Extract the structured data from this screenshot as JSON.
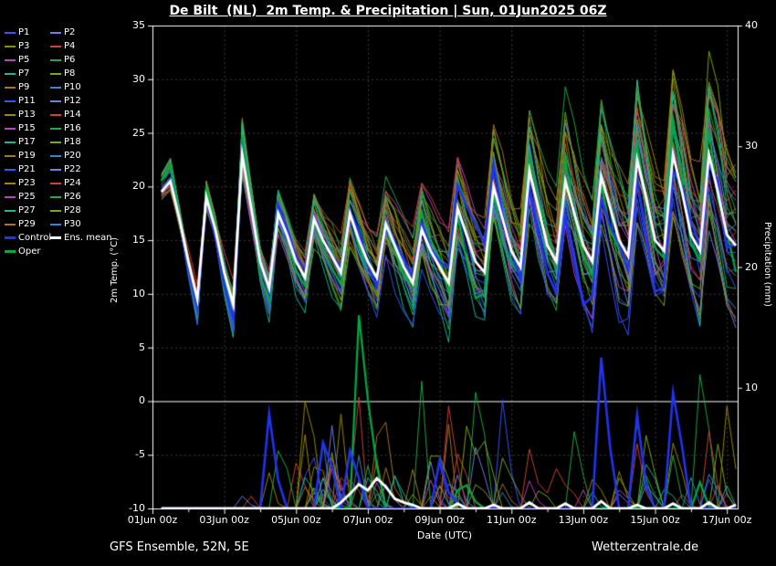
{
  "title": "De Bilt  (NL)  2m Temp. & Precipitation | Sun, 01Jun2025 06Z",
  "footer": {
    "left": "GFS Ensemble, 52N, 5E",
    "right": "Wetterzentrale.de"
  },
  "axes": {
    "left_label": "2m Temp. (°C)",
    "right_label": "Precipitation (mm)",
    "x_label": "Date (UTC)",
    "temp_ticks": [
      35,
      30,
      25,
      20,
      15,
      10,
      5,
      0,
      -5,
      -10
    ],
    "precip_ticks": [
      40,
      30,
      20,
      10
    ],
    "x_ticks": [
      {
        "day": 0,
        "label": "01Jun 00z"
      },
      {
        "day": 2,
        "label": "03Jun 00z"
      },
      {
        "day": 4,
        "label": "05Jun 00z"
      },
      {
        "day": 6,
        "label": "07Jun 00z"
      },
      {
        "day": 8,
        "label": "09Jun 00z"
      },
      {
        "day": 10,
        "label": "11Jun 00z"
      },
      {
        "day": 12,
        "label": "13Jun 00z"
      },
      {
        "day": 14,
        "label": "15Jun 00z"
      },
      {
        "day": 16,
        "label": "17Jun 00z"
      }
    ]
  },
  "legend": {
    "members": [
      {
        "label": "P1",
        "color": "#3a52ff"
      },
      {
        "label": "P2",
        "color": "#6f7fe8"
      },
      {
        "label": "P3",
        "color": "#9b8a00"
      },
      {
        "label": "P4",
        "color": "#cc4433"
      },
      {
        "label": "P5",
        "color": "#bb44bb"
      },
      {
        "label": "P6",
        "color": "#22aa44"
      },
      {
        "label": "P7",
        "color": "#18b89a"
      },
      {
        "label": "P8",
        "color": "#7aa81e"
      },
      {
        "label": "P9",
        "color": "#a8762a"
      },
      {
        "label": "P10",
        "color": "#3388cc"
      },
      {
        "label": "P11",
        "color": "#3a52ff"
      },
      {
        "label": "P12",
        "color": "#6f7fe8"
      },
      {
        "label": "P13",
        "color": "#9b8a00"
      },
      {
        "label": "P14",
        "color": "#cc4433"
      },
      {
        "label": "P15",
        "color": "#bb44bb"
      },
      {
        "label": "P16",
        "color": "#22aa44"
      },
      {
        "label": "P17",
        "color": "#18b89a"
      },
      {
        "label": "P18",
        "color": "#7aa81e"
      },
      {
        "label": "P19",
        "color": "#a8762a"
      },
      {
        "label": "P20",
        "color": "#3388cc"
      },
      {
        "label": "P21",
        "color": "#3a52ff"
      },
      {
        "label": "P22",
        "color": "#6f7fe8"
      },
      {
        "label": "P23",
        "color": "#9b8a00"
      },
      {
        "label": "P24",
        "color": "#cc4433"
      },
      {
        "label": "P25",
        "color": "#bb44bb"
      },
      {
        "label": "P26",
        "color": "#22aa44"
      },
      {
        "label": "P27",
        "color": "#18b89a"
      },
      {
        "label": "P28",
        "color": "#7aa81e"
      },
      {
        "label": "P29",
        "color": "#a8762a"
      },
      {
        "label": "P30",
        "color": "#3388cc"
      }
    ],
    "control": {
      "label": "Control",
      "color": "#2233ee"
    },
    "ens_mean": {
      "label": "Ens. mean",
      "color": "#ffffff"
    },
    "oper": {
      "label": "Oper",
      "color": "#00aa44"
    }
  },
  "chart_data": {
    "type": "line",
    "title": "De Bilt  (NL)  2m Temp. & Precipitation | Sun, 01Jun2025 06Z",
    "xlabel": "Date (UTC)",
    "ylabel_left": "2m Temp. (°C)",
    "ylabel_right": "Precipitation (mm)",
    "x_start_day": 0.25,
    "x_step_days": 0.25,
    "x_range_days": [
      0,
      16.3
    ],
    "temp_range": [
      -10,
      35
    ],
    "precip_range": [
      0,
      40
    ],
    "grid": true,
    "legend_position": "left",
    "ens_mean_temp": [
      19.5,
      20.5,
      17,
      13,
      9.5,
      19,
      16,
      12,
      9,
      23,
      18,
      13,
      10.5,
      17.5,
      15.5,
      13,
      11.5,
      17,
      15,
      13.5,
      12,
      17.5,
      15,
      13,
      11.5,
      16.5,
      14.5,
      12.5,
      11,
      16,
      14,
      12.5,
      11,
      18,
      15.5,
      13,
      12,
      20,
      17,
      14,
      12.5,
      21.5,
      18,
      14.5,
      13,
      20.5,
      17.5,
      14.5,
      13,
      21,
      18,
      15,
      13.5,
      22.5,
      19,
      15,
      14,
      23,
      19.5,
      15.5,
      14,
      23,
      19.5,
      15.5,
      14.5
    ],
    "ens_mean_precip": [
      0,
      0,
      0,
      0,
      0,
      0,
      0,
      0,
      0,
      0,
      0,
      0,
      0,
      0,
      0,
      0,
      0,
      0,
      0,
      0,
      0.5,
      1.2,
      2,
      1.5,
      2.5,
      1.8,
      0.8,
      0.5,
      0.3,
      0,
      0,
      0,
      0,
      0.4,
      0,
      0,
      0,
      0.3,
      0,
      0,
      0,
      0.5,
      0,
      0,
      0,
      0.4,
      0,
      0,
      0,
      0.6,
      0,
      0,
      0,
      0.3,
      0,
      0,
      0,
      0.4,
      0,
      0,
      0,
      0.5,
      0,
      0,
      0.3
    ],
    "members": {
      "count": 30,
      "seed": 1234
    },
    "control_precip_spikes": [
      {
        "i": 49,
        "mm": 12.5
      },
      {
        "i": 50,
        "mm": 5
      },
      {
        "i": 31,
        "mm": 4
      }
    ],
    "oper_precip_spikes": [
      {
        "i": 23,
        "mm": 9
      },
      {
        "i": 22,
        "mm": 16
      }
    ],
    "colors": {
      "control": "#2233ee",
      "ens_mean": "#ffffff",
      "oper": "#00aa44",
      "grid": "#3c3c3c",
      "zero_line": "#ffffff",
      "frame": "#ffffff",
      "background": "#000000"
    }
  }
}
